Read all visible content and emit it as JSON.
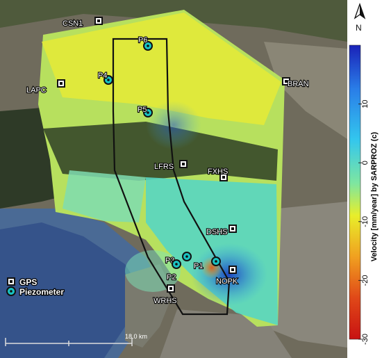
{
  "stations": {
    "gps": [
      {
        "name": "CSN1"
      },
      {
        "name": "LAPC"
      },
      {
        "name": "BRAN"
      },
      {
        "name": "LFRS"
      },
      {
        "name": "FXHS"
      },
      {
        "name": "DSHS"
      },
      {
        "name": "NOPK"
      },
      {
        "name": "WRHS"
      }
    ],
    "piezometers": [
      {
        "name": "P6"
      },
      {
        "name": "P4"
      },
      {
        "name": "P5"
      },
      {
        "name": "P3"
      },
      {
        "name": "P1"
      },
      {
        "name": "P2"
      }
    ]
  },
  "legend": {
    "gps_label": "GPS",
    "piezometer_label": "Piezometer"
  },
  "colorbar": {
    "title": "Velocity [mm/year]  by  SARPROZ (c)",
    "ticks": [
      "10",
      "0",
      "-10",
      "-20",
      "-30"
    ],
    "range": [
      -30,
      20
    ],
    "colors": [
      "#1a22b8",
      "#2a7ee8",
      "#33c6ee",
      "#7ee6a0",
      "#e8ee2a",
      "#f0a020",
      "#e04818",
      "#c81212"
    ]
  },
  "north_arrow": {
    "label": "N"
  },
  "scale_bar": {
    "label": "18.0 km"
  },
  "colors": {
    "gps_marker_fill": "#ffffff",
    "piezometer_fill": "#19c3c3",
    "outline": "#111111"
  }
}
